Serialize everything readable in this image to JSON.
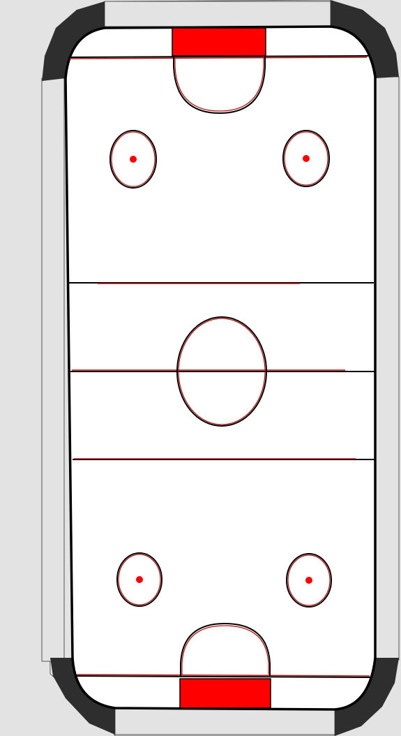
{
  "game": {
    "name": "air-hockey-table",
    "colors": {
      "background": "#e3e3e3",
      "rail": "#e3e3e3",
      "corner_bumper": "#2e2e2e",
      "surface": "#ffffff",
      "outline": "#000000",
      "marking": "#b01010",
      "goal": "#ff0000",
      "faceoff_dot": "#ff0000"
    },
    "goals": [
      {
        "side": "top",
        "icon": "goal-slot-icon"
      },
      {
        "side": "bottom",
        "icon": "goal-slot-icon"
      }
    ],
    "faceoff_spots": [
      {
        "half": "top",
        "side": "left"
      },
      {
        "half": "top",
        "side": "right"
      },
      {
        "half": "bottom",
        "side": "left"
      },
      {
        "half": "bottom",
        "side": "right"
      }
    ],
    "lines": [
      "top-goal-line",
      "top-blue-line",
      "center-line",
      "bottom-blue-line",
      "bottom-goal-line"
    ]
  }
}
